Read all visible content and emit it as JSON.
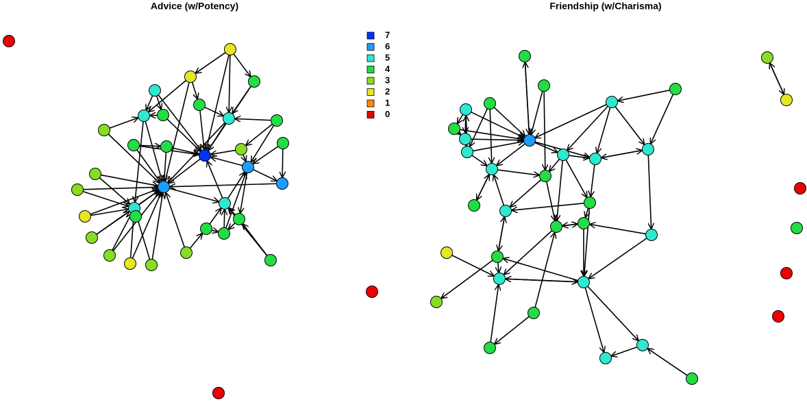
{
  "legend": {
    "levels": [
      7,
      6,
      5,
      4,
      3,
      2,
      1,
      0
    ],
    "colors": [
      "#0033ff",
      "#1a9fff",
      "#2ee8d0",
      "#22dd44",
      "#88dd22",
      "#e6e622",
      "#ff8c00",
      "#ee0000"
    ]
  },
  "advice": {
    "title": "Advice (w/Potency)",
    "node_levels": [
      0,
      2,
      2,
      5,
      4,
      4,
      5,
      4,
      5,
      4,
      3,
      4,
      4,
      7,
      3,
      4,
      6,
      3,
      6,
      6,
      3,
      5,
      5,
      4,
      2,
      4,
      4,
      4,
      3,
      3,
      3,
      2,
      3,
      4,
      0,
      0
    ]
  },
  "friendship": {
    "title": "Friendship (w/Charisma)",
    "node_levels": [
      4,
      3,
      4,
      4,
      2,
      4,
      5,
      5,
      4,
      5,
      6,
      5,
      5,
      5,
      5,
      5,
      4,
      0,
      4,
      5,
      4,
      4,
      4,
      4,
      5,
      2,
      4,
      5,
      5,
      0,
      3,
      4,
      0,
      4,
      5,
      5,
      4
    ]
  }
}
